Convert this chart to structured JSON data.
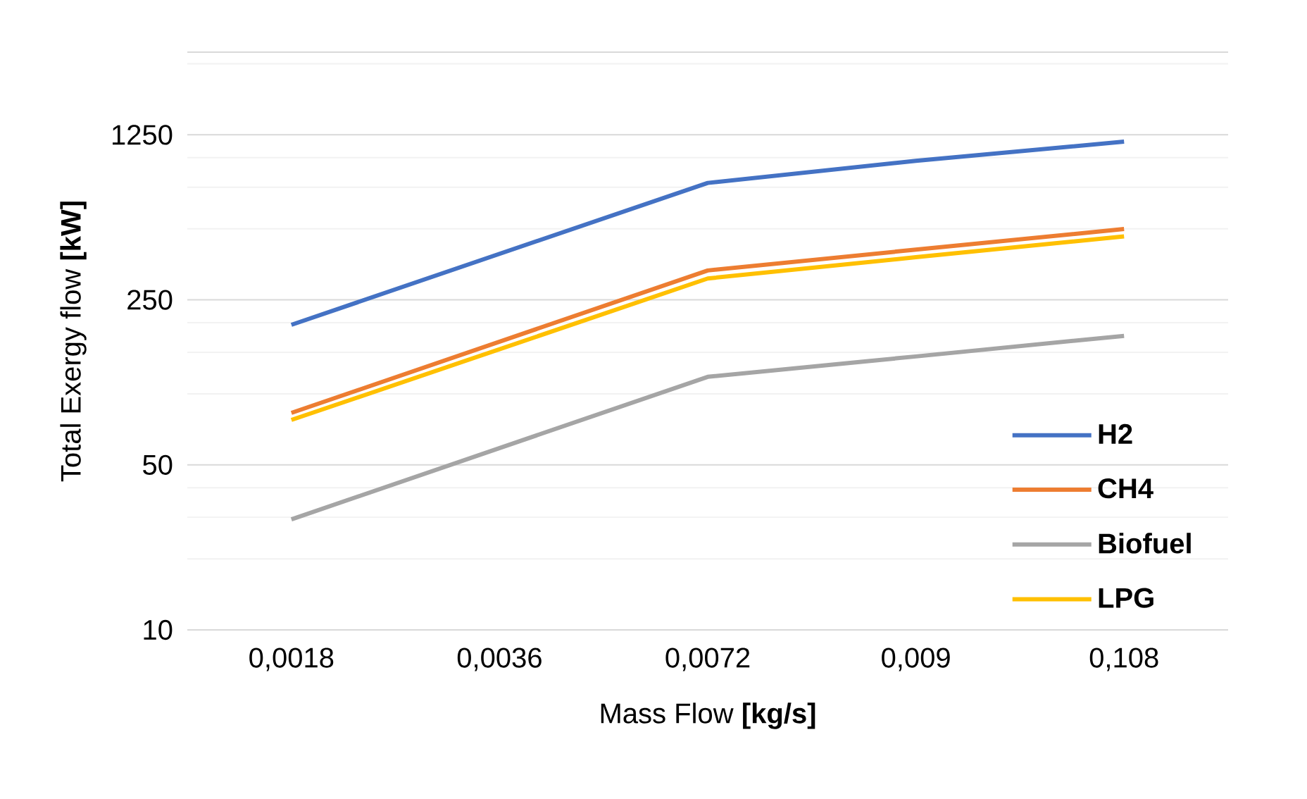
{
  "chart_data": {
    "type": "line",
    "xlabel": "Mass Flow **[kg/s]**",
    "ylabel": "Total Exergy flow  **[kW]**",
    "categories": [
      "0,0018",
      "0,0036",
      "0,0072",
      "0,009",
      "0,108"
    ],
    "series": [
      {
        "name": "**H2**",
        "color": "#4472c4",
        "values": [
          196,
          null,
          782,
          970,
          1170
        ]
      },
      {
        "name": "**CH4**",
        "color": "#ed7d31",
        "values": [
          83,
          null,
          333,
          408,
          499
        ]
      },
      {
        "name": "**Biofuel**",
        "color": "#a5a5a5",
        "values": [
          29.4,
          null,
          118,
          144,
          176
        ]
      },
      {
        "name": "**LPG**",
        "color": "#ffc000",
        "values": [
          77.5,
          null,
          308,
          379,
          464
        ]
      }
    ],
    "log": "y",
    "ylim": [
      10,
      2800
    ],
    "yticks": [
      10,
      50,
      250,
      1250
    ],
    "grid": "y",
    "legend": "bottom right",
    "marker": "none",
    "line_style": "solid"
  }
}
